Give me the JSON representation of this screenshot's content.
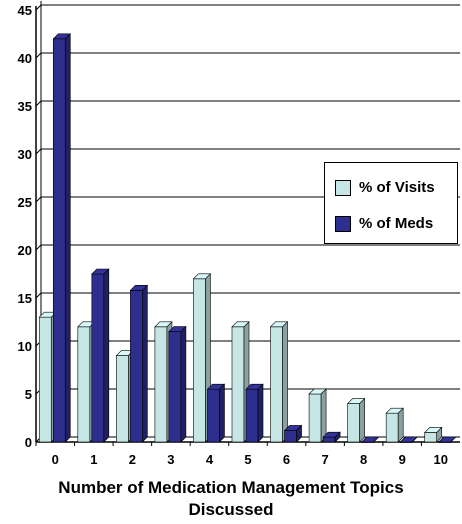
{
  "chart_data": {
    "type": "bar",
    "xlabel": "Number of Medication Management Topics Discussed",
    "xlabel_lines": [
      "Number of Medication Management Topics",
      "Discussed"
    ],
    "categories": [
      "0",
      "1",
      "2",
      "3",
      "4",
      "5",
      "6",
      "7",
      "8",
      "9",
      "10"
    ],
    "series": [
      {
        "name": "% of Visits",
        "color": "#c6e6e6",
        "values": [
          13,
          12,
          9,
          12,
          17,
          12,
          12,
          5,
          4,
          3,
          1
        ]
      },
      {
        "name": "% of Meds",
        "color": "#2e2e8e",
        "values": [
          42,
          17.5,
          15.8,
          11.5,
          5.5,
          5.5,
          1.2,
          0.5,
          0,
          0,
          0
        ]
      }
    ],
    "ylim": [
      0,
      45
    ],
    "yticks": [
      0,
      5,
      10,
      15,
      20,
      25,
      30,
      35,
      40,
      45
    ],
    "grid": true,
    "style": "3d-clustered",
    "legend_position": "right"
  }
}
